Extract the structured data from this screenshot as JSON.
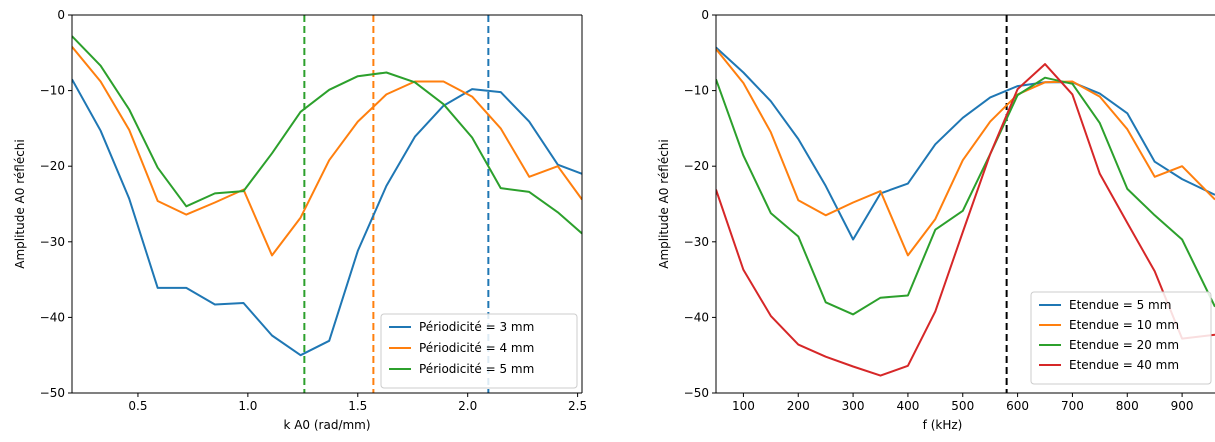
{
  "chart_data": [
    {
      "type": "line",
      "xlabel": "k A0 (rad/mm)",
      "ylabel": "Amplitude A0 réfléchi",
      "xlim": [
        0.2,
        2.52
      ],
      "ylim": [
        -50,
        0
      ],
      "xticks": [
        0.5,
        1.0,
        1.5,
        2.0,
        2.5
      ],
      "xtick_labels": [
        "0.5",
        "1.0",
        "1.5",
        "2.0",
        "2.5"
      ],
      "yticks": [
        -50,
        -40,
        -30,
        -20,
        -10,
        0
      ],
      "ytick_labels": [
        "−50",
        "−40",
        "−30",
        "−20",
        "−10",
        "0"
      ],
      "grid": false,
      "legend_position": "lower-right",
      "series": [
        {
          "name": "Périodicité  = 3 mm",
          "color": "#1f77b4",
          "x": [
            0.2,
            0.33,
            0.46,
            0.59,
            0.72,
            0.85,
            0.98,
            1.11,
            1.24,
            1.37,
            1.5,
            1.63,
            1.76,
            1.89,
            2.02,
            2.15,
            2.28,
            2.41,
            2.52
          ],
          "y": [
            -8.5,
            -15.3,
            -24.3,
            -36.1,
            -36.1,
            -38.3,
            -38.1,
            -42.4,
            -45.0,
            -43.1,
            -31.2,
            -22.6,
            -16.1,
            -12.0,
            -9.8,
            -10.2,
            -14.1,
            -19.8,
            -21.0
          ]
        },
        {
          "name": "Périodicité  = 4 mm",
          "color": "#ff7f0e",
          "x": [
            0.2,
            0.33,
            0.46,
            0.59,
            0.72,
            0.85,
            0.98,
            1.11,
            1.24,
            1.37,
            1.5,
            1.63,
            1.76,
            1.89,
            2.02,
            2.15,
            2.28,
            2.41,
            2.52
          ],
          "y": [
            -4.2,
            -8.8,
            -15.2,
            -24.6,
            -26.4,
            -24.8,
            -23.1,
            -31.8,
            -26.8,
            -19.2,
            -14.1,
            -10.5,
            -8.8,
            -8.8,
            -10.8,
            -15.0,
            -21.4,
            -20.0,
            -24.4
          ]
        },
        {
          "name": "Périodicité  = 5 mm",
          "color": "#2ca02c",
          "x": [
            0.2,
            0.33,
            0.46,
            0.59,
            0.72,
            0.85,
            0.98,
            1.11,
            1.24,
            1.37,
            1.5,
            1.63,
            1.76,
            1.89,
            2.02,
            2.15,
            2.28,
            2.41,
            2.52
          ],
          "y": [
            -2.8,
            -6.7,
            -12.5,
            -20.2,
            -25.3,
            -23.6,
            -23.3,
            -18.3,
            -12.8,
            -9.9,
            -8.1,
            -7.6,
            -8.9,
            -11.8,
            -16.2,
            -22.9,
            -23.4,
            -26.1,
            -28.9
          ]
        }
      ],
      "vlines": [
        {
          "x": 1.257,
          "color": "#2ca02c"
        },
        {
          "x": 1.571,
          "color": "#ff7f0e"
        },
        {
          "x": 2.094,
          "color": "#1f77b4"
        }
      ]
    },
    {
      "type": "line",
      "xlabel": "f (kHz)",
      "ylabel": "Amplitude A0 réfléchi",
      "xlim": [
        50,
        960
      ],
      "ylim": [
        -50,
        0
      ],
      "xticks": [
        100,
        200,
        300,
        400,
        500,
        600,
        700,
        800,
        900
      ],
      "xtick_labels": [
        "100",
        "200",
        "300",
        "400",
        "500",
        "600",
        "700",
        "800",
        "900"
      ],
      "yticks": [
        -50,
        -40,
        -30,
        -20,
        -10,
        0
      ],
      "ytick_labels": [
        "−50",
        "−40",
        "−30",
        "−20",
        "−10",
        "0"
      ],
      "grid": false,
      "legend_position": "lower-right",
      "series": [
        {
          "name": "Etendue = 5 mm",
          "color": "#1f77b4",
          "x": [
            50,
            100,
            150,
            200,
            250,
            300,
            350,
            400,
            450,
            500,
            550,
            600,
            650,
            700,
            750,
            800,
            850,
            900,
            960
          ],
          "y": [
            -4.3,
            -7.6,
            -11.4,
            -16.4,
            -22.6,
            -29.7,
            -23.6,
            -22.3,
            -17.1,
            -13.6,
            -10.9,
            -9.4,
            -8.9,
            -8.9,
            -10.4,
            -13.0,
            -19.4,
            -21.7,
            -23.8
          ]
        },
        {
          "name": "Etendue = 10 mm",
          "color": "#ff7f0e",
          "x": [
            50,
            100,
            150,
            200,
            250,
            300,
            350,
            400,
            450,
            500,
            550,
            600,
            650,
            700,
            750,
            800,
            850,
            900,
            960
          ],
          "y": [
            -4.5,
            -9.0,
            -15.5,
            -24.5,
            -26.5,
            -24.8,
            -23.3,
            -31.8,
            -27.0,
            -19.2,
            -14.1,
            -10.5,
            -8.9,
            -8.8,
            -10.8,
            -15.1,
            -21.4,
            -20.0,
            -24.4
          ]
        },
        {
          "name": "Etendue = 20 mm",
          "color": "#2ca02c",
          "x": [
            50,
            100,
            150,
            200,
            250,
            300,
            350,
            400,
            450,
            500,
            550,
            600,
            650,
            700,
            750,
            800,
            850,
            900,
            960
          ],
          "y": [
            -8.5,
            -18.6,
            -26.2,
            -29.3,
            -38.0,
            -39.6,
            -37.4,
            -37.1,
            -28.4,
            -25.9,
            -18.4,
            -10.6,
            -8.3,
            -9.1,
            -14.3,
            -23.0,
            -26.5,
            -29.7,
            -38.6
          ]
        },
        {
          "name": "Etendue = 40 mm",
          "color": "#d62728",
          "x": [
            50,
            100,
            150,
            200,
            250,
            300,
            350,
            400,
            450,
            500,
            550,
            600,
            650,
            700,
            750,
            800,
            850,
            900,
            960
          ],
          "y": [
            -23.1,
            -33.7,
            -39.8,
            -43.6,
            -45.2,
            -46.5,
            -47.7,
            -46.4,
            -39.2,
            -28.7,
            -18.4,
            -9.8,
            -6.5,
            -10.5,
            -21.0,
            -27.5,
            -33.9,
            -42.8,
            -42.3
          ]
        }
      ],
      "vlines": [
        {
          "x": 580,
          "color": "#000000"
        }
      ]
    }
  ]
}
